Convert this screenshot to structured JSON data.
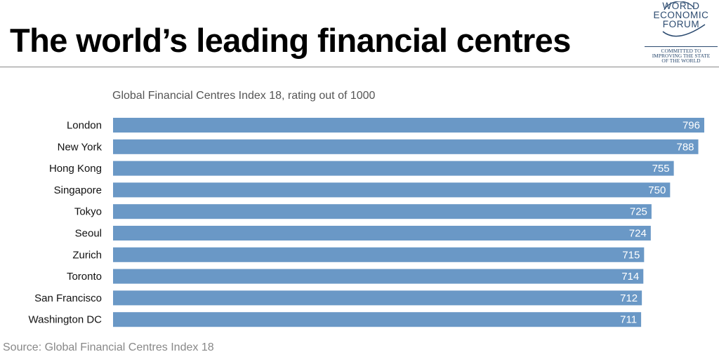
{
  "header": {
    "title": "The world’s leading financial centres",
    "logo": {
      "wordmark": [
        "WORLD",
        "ECONOMIC",
        "FORUM"
      ],
      "tagline": [
        "COMMITTED TO",
        "IMPROVING THE STATE",
        "OF THE WORLD"
      ],
      "color": "#2b4a6f"
    }
  },
  "chart_data": {
    "type": "bar",
    "orientation": "horizontal",
    "title": "Global Financial Centres Index 18, rating out of 1000",
    "categories": [
      "London",
      "New York",
      "Hong Kong",
      "Singapore",
      "Tokyo",
      "Seoul",
      "Zurich",
      "Toronto",
      "San Francisco",
      "Washington DC"
    ],
    "values": [
      796,
      788,
      755,
      750,
      725,
      724,
      715,
      714,
      712,
      711
    ],
    "xlabel": "",
    "ylabel": "",
    "grid": false,
    "bar_color": "#6a98c6",
    "label_color": "#ffffff"
  },
  "footer": {
    "source": "Source: Global Financial Centres Index 18"
  }
}
